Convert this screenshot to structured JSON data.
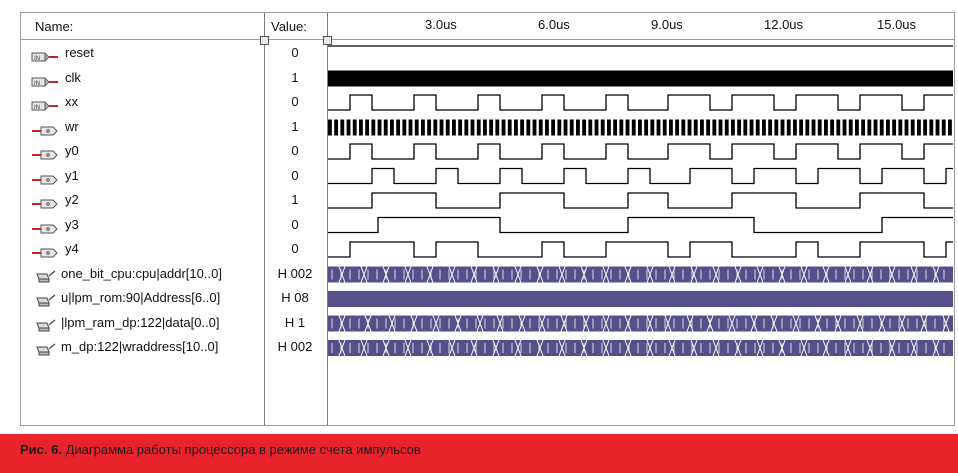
{
  "header": {
    "name_label": "Name:",
    "value_label": "Value:"
  },
  "time_ticks": [
    "3.0us",
    "6.0us",
    "9.0us",
    "12.0us",
    "15.0us"
  ],
  "signals": [
    {
      "name": "reset",
      "value": "0",
      "kind": "input",
      "icon": "input-pin-icon"
    },
    {
      "name": "clk",
      "value": "1",
      "kind": "input",
      "icon": "input-pin-icon"
    },
    {
      "name": "xx",
      "value": "0",
      "kind": "input",
      "icon": "input-pin-icon"
    },
    {
      "name": "wr",
      "value": "1",
      "kind": "output",
      "icon": "output-pin-icon"
    },
    {
      "name": "y0",
      "value": "0",
      "kind": "output",
      "icon": "output-pin-icon"
    },
    {
      "name": "y1",
      "value": "0",
      "kind": "output",
      "icon": "output-pin-icon"
    },
    {
      "name": "y2",
      "value": "1",
      "kind": "output",
      "icon": "output-pin-icon"
    },
    {
      "name": "y3",
      "value": "0",
      "kind": "output",
      "icon": "output-pin-icon"
    },
    {
      "name": "y4",
      "value": "0",
      "kind": "output",
      "icon": "output-pin-icon"
    },
    {
      "name": "one_bit_cpu:cpu|addr[10..0]",
      "value": "H 002",
      "kind": "bus",
      "icon": "bus-probe-icon"
    },
    {
      "name": "u|lpm_rom:90|Address[6..0]",
      "value": "H 08",
      "kind": "bus",
      "icon": "bus-probe-icon"
    },
    {
      "name": "|lpm_ram_dp:122|data[0..0]",
      "value": "H 1",
      "kind": "bus",
      "icon": "bus-probe-icon"
    },
    {
      "name": "m_dp:122|wraddress[10..0]",
      "value": "H 002",
      "kind": "bus",
      "icon": "bus-probe-icon"
    }
  ],
  "caption": {
    "label": "Рис. 6.",
    "text": " Диаграмма работы процессора в режиме счета импульсов"
  },
  "colors": {
    "bus_fill": "#55508a",
    "bus_line": "#ffffff",
    "caption_bar": "#e8232b",
    "pin_red": "#cc1f1f"
  }
}
